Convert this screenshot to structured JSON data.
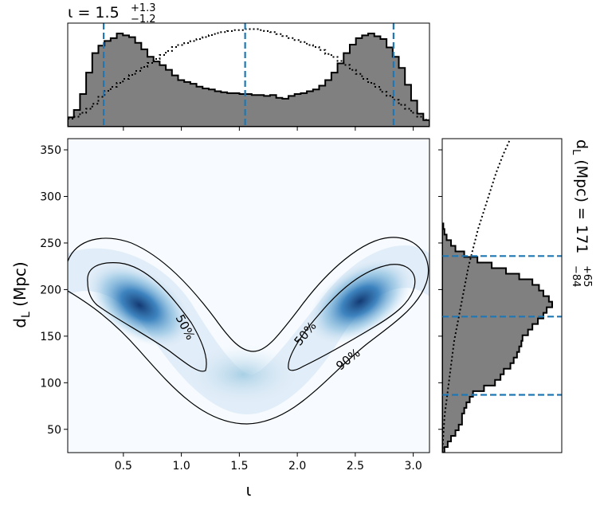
{
  "chart_data": {
    "type": "heatmap",
    "main": {
      "xlabel": "ι",
      "ylabel_main": "d",
      "ylabel_sub": "L",
      "ylabel_unit": " (Mpc)",
      "xlim": [
        0.02,
        3.14
      ],
      "ylim": [
        25,
        362
      ],
      "xticks": [
        0.5,
        1.0,
        1.5,
        2.0,
        2.5,
        3.0
      ],
      "xtick_labels": [
        "0.5",
        "1.0",
        "1.5",
        "2.0",
        "2.5",
        "3.0"
      ],
      "yticks": [
        50,
        100,
        150,
        200,
        250,
        300,
        350
      ],
      "ytick_labels": [
        "50",
        "100",
        "150",
        "200",
        "250",
        "300",
        "350"
      ],
      "colormap": "Blues",
      "density_peaks": [
        {
          "x": 0.65,
          "y": 180
        },
        {
          "x": 2.5,
          "y": 185
        }
      ],
      "contours": [
        {
          "level": "50%",
          "label": "50%"
        },
        {
          "level": "50%",
          "label": "50%"
        },
        {
          "level": "90%",
          "label": "90%"
        }
      ]
    },
    "top_marginal": {
      "title_symbol": "ι",
      "title_eq": " = 1.5",
      "title_plus": "+1.3",
      "title_minus": "−1.2",
      "median": 1.55,
      "lower": 0.33,
      "upper": 2.83,
      "fill_color": "#808080",
      "line_color": "#1f77b4",
      "posterior_values": [
        0.1,
        0.18,
        0.35,
        0.58,
        0.79,
        0.87,
        0.92,
        0.95,
        1.0,
        0.98,
        0.96,
        0.9,
        0.83,
        0.75,
        0.7,
        0.66,
        0.61,
        0.55,
        0.5,
        0.48,
        0.46,
        0.43,
        0.41,
        0.4,
        0.38,
        0.37,
        0.36,
        0.36,
        0.35,
        0.35,
        0.34,
        0.34,
        0.33,
        0.34,
        0.31,
        0.3,
        0.33,
        0.35,
        0.36,
        0.38,
        0.4,
        0.44,
        0.5,
        0.58,
        0.68,
        0.79,
        0.88,
        0.95,
        0.98,
        1.0,
        0.97,
        0.94,
        0.85,
        0.75,
        0.63,
        0.45,
        0.28,
        0.14,
        0.07
      ],
      "prior_values": [
        0.08,
        0.1,
        0.14,
        0.18,
        0.23,
        0.3,
        0.36,
        0.4,
        0.44,
        0.48,
        0.52,
        0.56,
        0.6,
        0.64,
        0.68,
        0.72,
        0.76,
        0.8,
        0.82,
        0.84,
        0.86,
        0.88,
        0.9,
        0.92,
        0.94,
        0.95,
        0.96,
        0.97,
        0.97,
        0.98,
        0.98,
        0.97,
        0.96,
        0.95,
        0.93,
        0.91,
        0.89,
        0.87,
        0.85,
        0.82,
        0.8,
        0.77,
        0.73,
        0.7,
        0.66,
        0.62,
        0.57,
        0.53,
        0.48,
        0.44,
        0.4,
        0.35,
        0.31,
        0.27,
        0.22,
        0.18,
        0.14,
        0.1,
        0.07
      ]
    },
    "right_marginal": {
      "label_main": "d",
      "label_sub": "L",
      "label_eq": " (Mpc) = 171",
      "label_plus": "+65",
      "label_minus": "−84",
      "median": 171,
      "lower": 87,
      "upper": 236,
      "ylim": [
        25,
        362
      ],
      "fill_color": "#808080",
      "line_color": "#1f77b4",
      "bin_starts": [
        25,
        31,
        37,
        43,
        49,
        55,
        61,
        67,
        73,
        79,
        85,
        91,
        97,
        103,
        109,
        115,
        121,
        127,
        133,
        139,
        145,
        151,
        157,
        163,
        169,
        175,
        181,
        187,
        193,
        199,
        205,
        211,
        217,
        223,
        229,
        235,
        241,
        247,
        253,
        259,
        265
      ],
      "posterior_values": [
        0.02,
        0.05,
        0.08,
        0.12,
        0.15,
        0.18,
        0.18,
        0.2,
        0.22,
        0.25,
        0.28,
        0.38,
        0.48,
        0.53,
        0.56,
        0.62,
        0.65,
        0.68,
        0.7,
        0.72,
        0.73,
        0.78,
        0.82,
        0.87,
        0.92,
        0.95,
        1.0,
        0.97,
        0.92,
        0.88,
        0.82,
        0.7,
        0.58,
        0.45,
        0.32,
        0.2,
        0.12,
        0.08,
        0.04,
        0.02,
        0.01
      ],
      "prior_x": [
        0.0,
        0.01,
        0.02,
        0.04,
        0.06,
        0.08,
        0.1,
        0.13,
        0.16,
        0.19,
        0.22,
        0.26,
        0.3,
        0.35,
        0.4,
        0.45,
        0.51,
        0.57
      ],
      "prior_y": [
        25,
        45,
        65,
        85,
        105,
        125,
        145,
        165,
        185,
        205,
        225,
        245,
        265,
        285,
        305,
        325,
        345,
        362
      ]
    }
  }
}
